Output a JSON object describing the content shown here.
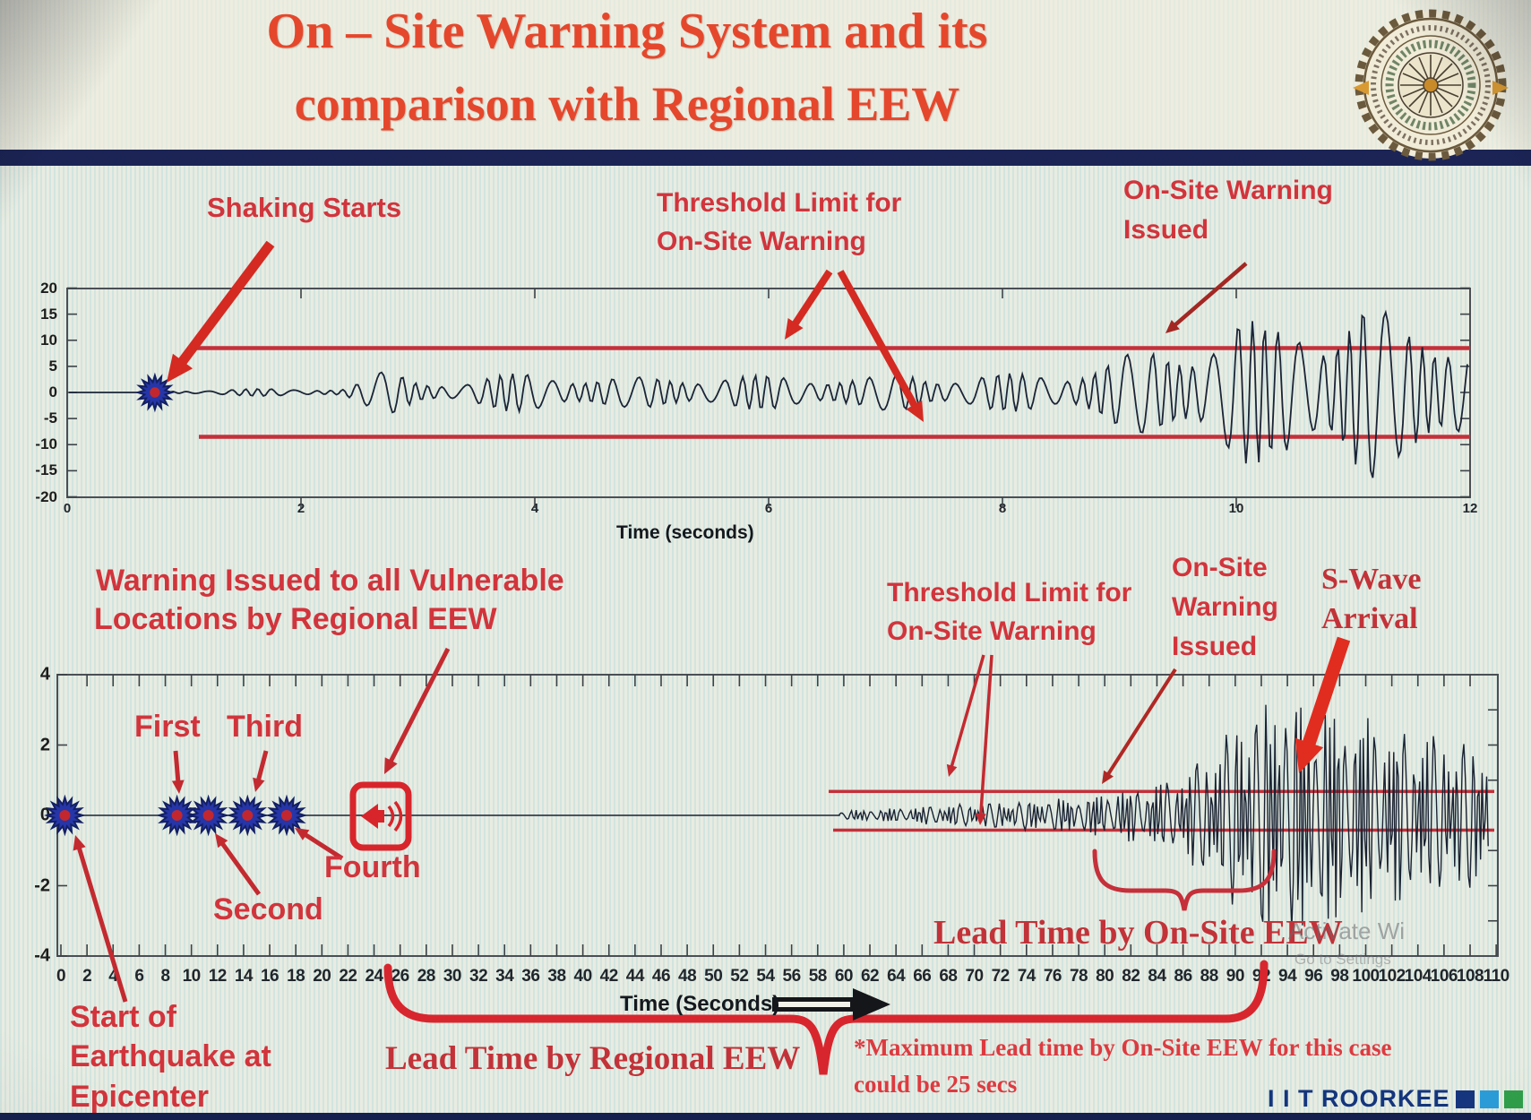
{
  "slide": {
    "title_line1": "On – Site Warning System and its",
    "title_line2": "comparison with Regional EEW",
    "brand": "I I T ROORKEE",
    "watermark_line1": "Activate Wi",
    "watermark_line2": "Go to Settings",
    "footnote_line1": "*Maximum Lead time by On-Site EEW for this case",
    "footnote_line2": "could be 25 secs"
  },
  "top_chart": {
    "xlabel": "Time (seconds)",
    "annotations": {
      "shaking_starts": "Shaking Starts",
      "threshold_line1": "Threshold Limit for",
      "threshold_line2": "On-Site Warning",
      "issued_line1": "On-Site Warning",
      "issued_line2": "Issued"
    }
  },
  "bottom_chart": {
    "xlabel": "Time (Seconds)",
    "annotations": {
      "regional_line1": "Warning Issued to all Vulnerable",
      "regional_line2": "Locations by Regional EEW",
      "first": "First",
      "second": "Second",
      "third": "Third",
      "fourth": "Fourth",
      "threshold_line1": "Threshold Limit for",
      "threshold_line2": "On-Site Warning",
      "onsite_line1": "On-Site",
      "onsite_line2": "Warning",
      "onsite_line3": "Issued",
      "swave_line1": "S-Wave",
      "swave_line2": "Arrival",
      "lead_onsite": "Lead Time by On-Site EEW",
      "lead_regional": "Lead Time by Regional EEW",
      "start_line1": "Start of",
      "start_line2": "Earthquake at",
      "start_line3": "Epicenter"
    }
  },
  "chart_data": [
    {
      "type": "line",
      "name": "onsite-station-seismogram",
      "xlabel": "Time (seconds)",
      "xlim": [
        0,
        12
      ],
      "x_ticks": [
        0,
        2,
        4,
        6,
        8,
        10,
        12
      ],
      "ylim": [
        -20,
        20
      ],
      "y_ticks": [
        20,
        15,
        10,
        5,
        0,
        -5,
        -10,
        -15,
        -20
      ],
      "grid": false,
      "threshold_upper": 8.5,
      "threshold_lower": -8.5,
      "events": {
        "shaking_starts_t": 0.75,
        "onsite_warning_issued_t": 9.3
      },
      "amplitude_envelope": [
        [
          0.85,
          0.3
        ],
        [
          1.6,
          0.7
        ],
        [
          2.35,
          0.8
        ],
        [
          2.55,
          2.6
        ],
        [
          2.75,
          4.5
        ],
        [
          3.0,
          2.6
        ],
        [
          3.4,
          2.3
        ],
        [
          3.7,
          3.4
        ],
        [
          4.1,
          4.5
        ],
        [
          4.5,
          3.1
        ],
        [
          4.8,
          2.8
        ],
        [
          5.25,
          3.8
        ],
        [
          5.7,
          3.1
        ],
        [
          6.3,
          3.8
        ],
        [
          6.8,
          2.8
        ],
        [
          7.2,
          4.1
        ],
        [
          7.7,
          3.4
        ],
        [
          8.15,
          3.8
        ],
        [
          8.6,
          4.8
        ],
        [
          9.0,
          6.9
        ],
        [
          9.3,
          8.9
        ],
        [
          9.6,
          11.2
        ],
        [
          10.0,
          14.6
        ],
        [
          10.3,
          12.9
        ],
        [
          10.55,
          17.2
        ],
        [
          10.8,
          15.5
        ],
        [
          11.1,
          18.0
        ],
        [
          11.4,
          13.7
        ],
        [
          11.7,
          15.5
        ],
        [
          12.0,
          14.6
        ]
      ]
    },
    {
      "type": "line",
      "name": "regional-vs-onsite-eew-timeline",
      "xlabel": "Time (Seconds)",
      "xlim": [
        0,
        110
      ],
      "x_ticks": [
        0,
        2,
        4,
        6,
        8,
        10,
        12,
        14,
        16,
        18,
        20,
        22,
        24,
        26,
        28,
        30,
        32,
        34,
        36,
        38,
        40,
        42,
        44,
        46,
        48,
        50,
        52,
        54,
        56,
        58,
        60,
        62,
        64,
        66,
        68,
        70,
        72,
        74,
        76,
        78,
        80,
        82,
        84,
        86,
        88,
        90,
        92,
        94,
        96,
        98,
        100,
        102,
        104,
        106,
        108,
        110
      ],
      "ylim": [
        -4,
        4
      ],
      "y_ticks": [
        4,
        2,
        0,
        -2,
        -4
      ],
      "grid": false,
      "threshold_upper": 0.68,
      "threshold_lower": -0.42,
      "p_wave_detection_t": [
        0.3,
        8.9,
        11.3,
        14.3,
        17.3
      ],
      "regional_warning_t": 24.5,
      "events": {
        "signal_start_t": 59.7,
        "onsite_warning_issued_t": 79.8,
        "s_wave_arrival_t": 94,
        "onsite_lead_time_span": [
          79.3,
          93.0
        ],
        "regional_lead_time_span": [
          25.0,
          92.3
        ]
      },
      "amplitude_envelope": [
        [
          59.7,
          0.13
        ],
        [
          64,
          0.2
        ],
        [
          68,
          0.3
        ],
        [
          72,
          0.38
        ],
        [
          76,
          0.46
        ],
        [
          79,
          0.56
        ],
        [
          82,
          0.76
        ],
        [
          85,
          1.0
        ],
        [
          88,
          1.8
        ],
        [
          90.5,
          2.9
        ],
        [
          93.5,
          3.6
        ],
        [
          96,
          3.3
        ],
        [
          99,
          2.95
        ],
        [
          102,
          2.55
        ],
        [
          106,
          2.25
        ],
        [
          109.5,
          2.05
        ]
      ]
    }
  ]
}
